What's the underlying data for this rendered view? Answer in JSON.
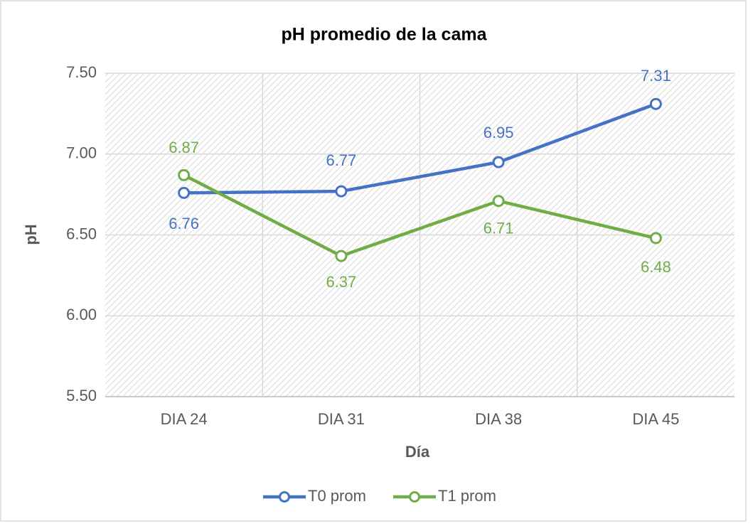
{
  "chart_data": {
    "type": "line",
    "title": "pH promedio de la cama",
    "x_label": "Día",
    "y_label": "pH",
    "categories": [
      "DIA 24",
      "DIA 31",
      "DIA 38",
      "DIA 45"
    ],
    "series": [
      {
        "name": "T0 prom",
        "color": "#4472c4",
        "values": [
          6.76,
          6.77,
          6.95,
          7.31
        ]
      },
      {
        "name": "T1 prom",
        "color": "#70ad47",
        "values": [
          6.87,
          6.37,
          6.71,
          6.48
        ]
      }
    ],
    "ylim": [
      5.5,
      7.5
    ],
    "yticks": [
      {
        "value": 5.5,
        "label": "5.50"
      },
      {
        "value": 6,
        "label": "6.00"
      },
      {
        "value": 6.5,
        "label": "6.50"
      },
      {
        "value": 7,
        "label": "7.00"
      },
      {
        "value": 7.5,
        "label": "7.50"
      }
    ],
    "grid": true,
    "legend": "bottom"
  }
}
